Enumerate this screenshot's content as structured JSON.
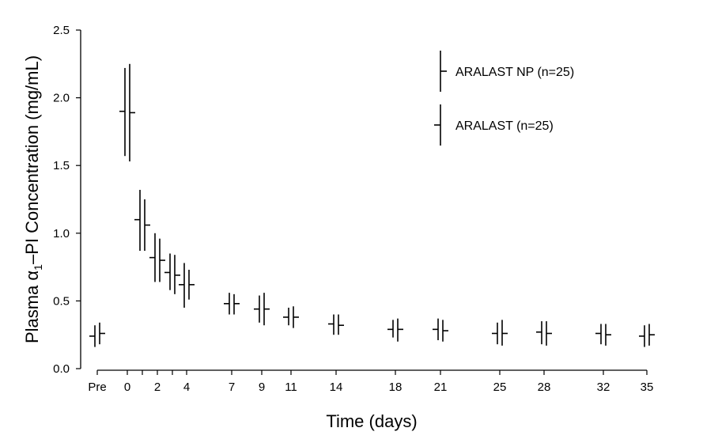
{
  "chart_data": {
    "type": "scatter",
    "title": "",
    "xlabel": "Time (days)",
    "ylabel_prefix": "Plasma α",
    "ylabel_sub": "1",
    "ylabel_suffix": "–PI Concentration (mg/mL)",
    "ylim": [
      0,
      2.5
    ],
    "y_ticks": [
      {
        "v": 0,
        "label": "0.0"
      },
      {
        "v": 0.5,
        "label": "0.5"
      },
      {
        "v": 1.0,
        "label": "1.0"
      },
      {
        "v": 1.5,
        "label": "1.5"
      },
      {
        "v": 2.0,
        "label": "2.0"
      },
      {
        "v": 2.5,
        "label": "2.5"
      }
    ],
    "x_ticks": [
      {
        "v": -1,
        "label": "Pre"
      },
      {
        "v": 0,
        "label": "0"
      },
      {
        "v": 1,
        "label": ""
      },
      {
        "v": 2,
        "label": "2"
      },
      {
        "v": 3,
        "label": ""
      },
      {
        "v": 4,
        "label": "4"
      },
      {
        "v": 7,
        "label": "7"
      },
      {
        "v": 9,
        "label": "9"
      },
      {
        "v": 11,
        "label": "11"
      },
      {
        "v": 14,
        "label": "14"
      },
      {
        "v": 18,
        "label": "18"
      },
      {
        "v": 21,
        "label": "21"
      },
      {
        "v": 25,
        "label": "25"
      },
      {
        "v": 28,
        "label": "28"
      },
      {
        "v": 32,
        "label": "32"
      },
      {
        "v": 35,
        "label": "35"
      }
    ],
    "legend_position": "top-right",
    "series": [
      {
        "name": "ARALAST NP (n=25)",
        "marker": "right",
        "points": [
          {
            "x": -1,
            "mean": 0.26,
            "low": 0.18,
            "high": 0.34
          },
          {
            "x": 0,
            "mean": 1.89,
            "low": 1.53,
            "high": 2.25
          },
          {
            "x": 1,
            "mean": 1.06,
            "low": 0.87,
            "high": 1.25
          },
          {
            "x": 2,
            "mean": 0.8,
            "low": 0.64,
            "high": 0.96
          },
          {
            "x": 3,
            "mean": 0.69,
            "low": 0.55,
            "high": 0.84
          },
          {
            "x": 4,
            "mean": 0.62,
            "low": 0.51,
            "high": 0.73
          },
          {
            "x": 7,
            "mean": 0.48,
            "low": 0.4,
            "high": 0.55
          },
          {
            "x": 9,
            "mean": 0.44,
            "low": 0.32,
            "high": 0.56
          },
          {
            "x": 11,
            "mean": 0.38,
            "low": 0.3,
            "high": 0.46
          },
          {
            "x": 14,
            "mean": 0.32,
            "low": 0.25,
            "high": 0.4
          },
          {
            "x": 18,
            "mean": 0.29,
            "low": 0.2,
            "high": 0.37
          },
          {
            "x": 21,
            "mean": 0.28,
            "low": 0.2,
            "high": 0.36
          },
          {
            "x": 25,
            "mean": 0.26,
            "low": 0.17,
            "high": 0.36
          },
          {
            "x": 28,
            "mean": 0.26,
            "low": 0.17,
            "high": 0.35
          },
          {
            "x": 32,
            "mean": 0.25,
            "low": 0.17,
            "high": 0.33
          },
          {
            "x": 35,
            "mean": 0.25,
            "low": 0.17,
            "high": 0.33
          }
        ]
      },
      {
        "name": "ARALAST (n=25)",
        "marker": "left",
        "points": [
          {
            "x": -1,
            "mean": 0.24,
            "low": 0.16,
            "high": 0.32
          },
          {
            "x": 0,
            "mean": 1.9,
            "low": 1.57,
            "high": 2.22
          },
          {
            "x": 1,
            "mean": 1.1,
            "low": 0.87,
            "high": 1.32
          },
          {
            "x": 2,
            "mean": 0.82,
            "low": 0.64,
            "high": 1.0
          },
          {
            "x": 3,
            "mean": 0.71,
            "low": 0.58,
            "high": 0.85
          },
          {
            "x": 4,
            "mean": 0.62,
            "low": 0.45,
            "high": 0.78
          },
          {
            "x": 7,
            "mean": 0.48,
            "low": 0.4,
            "high": 0.56
          },
          {
            "x": 9,
            "mean": 0.44,
            "low": 0.34,
            "high": 0.54
          },
          {
            "x": 11,
            "mean": 0.38,
            "low": 0.32,
            "high": 0.45
          },
          {
            "x": 14,
            "mean": 0.33,
            "low": 0.25,
            "high": 0.4
          },
          {
            "x": 18,
            "mean": 0.29,
            "low": 0.23,
            "high": 0.36
          },
          {
            "x": 21,
            "mean": 0.29,
            "low": 0.21,
            "high": 0.37
          },
          {
            "x": 25,
            "mean": 0.26,
            "low": 0.18,
            "high": 0.34
          },
          {
            "x": 28,
            "mean": 0.27,
            "low": 0.18,
            "high": 0.35
          },
          {
            "x": 32,
            "mean": 0.26,
            "low": 0.18,
            "high": 0.33
          },
          {
            "x": 35,
            "mean": 0.24,
            "low": 0.16,
            "high": 0.32
          }
        ]
      }
    ]
  }
}
